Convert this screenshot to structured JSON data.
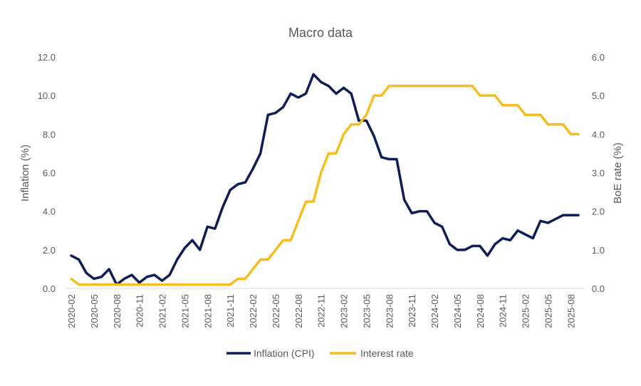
{
  "chart_data": {
    "type": "line",
    "title": "Macro data",
    "ylabel_left": "Inflation (%)",
    "ylabel_right": "BoE rate (%)",
    "ylim_left": [
      0,
      12
    ],
    "ylim_right": [
      0,
      6
    ],
    "yticks_left": [
      "0.0",
      "2.0",
      "4.0",
      "6.0",
      "8.0",
      "10.0",
      "12.0"
    ],
    "yticks_right": [
      "0.0",
      "1.0",
      "2.0",
      "3.0",
      "4.0",
      "5.0",
      "6.0"
    ],
    "grid": false,
    "legend_position": "bottom",
    "x_start": "2020-02",
    "tick_labels": [
      "2020-02",
      "2020-05",
      "2020-08",
      "2020-11",
      "2021-02",
      "2021-05",
      "2021-08",
      "2021-11",
      "2022-02",
      "2022-05",
      "2022-08",
      "2022-11",
      "2023-02",
      "2023-05",
      "2023-08",
      "2023-11",
      "2024-02",
      "2024-05",
      "2024-08",
      "2024-11",
      "2025-02",
      "2025-05",
      "2025-08"
    ],
    "series": [
      {
        "name": "Inflation (CPI)",
        "axis": "left",
        "color": "#0d1d56",
        "values": [
          1.7,
          1.5,
          0.8,
          0.5,
          0.6,
          1.0,
          0.2,
          0.5,
          0.7,
          0.3,
          0.6,
          0.7,
          0.4,
          0.7,
          1.5,
          2.1,
          2.5,
          2.0,
          3.2,
          3.1,
          4.2,
          5.1,
          5.4,
          5.5,
          6.2,
          7.0,
          9.0,
          9.1,
          9.4,
          10.1,
          9.9,
          10.1,
          11.1,
          10.7,
          10.5,
          10.1,
          10.4,
          10.1,
          8.7,
          8.7,
          7.9,
          6.8,
          6.7,
          6.7,
          4.6,
          3.9,
          4.0,
          4.0,
          3.4,
          3.2,
          2.3,
          2.0,
          2.0,
          2.2,
          2.2,
          1.7,
          2.3,
          2.6,
          2.5,
          3.0,
          2.8,
          2.6,
          3.5,
          3.4,
          3.6,
          3.8,
          3.8,
          3.8
        ]
      },
      {
        "name": "Interest rate",
        "axis": "right",
        "color": "#f5bd1f",
        "values": [
          0.25,
          0.1,
          0.1,
          0.1,
          0.1,
          0.1,
          0.1,
          0.1,
          0.1,
          0.1,
          0.1,
          0.1,
          0.1,
          0.1,
          0.1,
          0.1,
          0.1,
          0.1,
          0.1,
          0.1,
          0.1,
          0.1,
          0.25,
          0.25,
          0.5,
          0.75,
          0.75,
          1.0,
          1.25,
          1.25,
          1.75,
          2.25,
          2.25,
          3.0,
          3.5,
          3.5,
          4.0,
          4.25,
          4.25,
          4.5,
          5.0,
          5.0,
          5.25,
          5.25,
          5.25,
          5.25,
          5.25,
          5.25,
          5.25,
          5.25,
          5.25,
          5.25,
          5.25,
          5.25,
          5.0,
          5.0,
          5.0,
          4.75,
          4.75,
          4.75,
          4.5,
          4.5,
          4.5,
          4.25,
          4.25,
          4.25,
          4.0,
          4.0
        ]
      }
    ]
  }
}
